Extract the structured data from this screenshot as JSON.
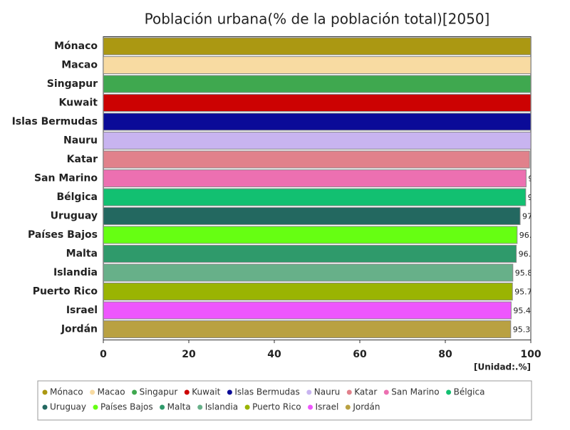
{
  "chart_data": {
    "type": "bar",
    "orientation": "horizontal",
    "title": "Población urbana(% de la población total)[2050]",
    "unit_label": "[Unidad:.%]",
    "categories": [
      "Mónaco",
      "Macao",
      "Singapur",
      "Kuwait",
      "Islas Bermudas",
      "Nauru",
      "Katar",
      "San Marino",
      "Bélgica",
      "Uruguay",
      "Países Bajos",
      "Malta",
      "Islandia",
      "Puerto Rico",
      "Israel",
      "Jordán"
    ],
    "values": [
      100,
      100,
      100,
      100,
      100,
      100,
      99.7,
      98.9,
      98.8,
      97.5,
      96.8,
      96.6,
      95.8,
      95.7,
      95.4,
      95.3
    ],
    "colors": [
      "#ab9812",
      "#f8dba2",
      "#3fa84f",
      "#cc0202",
      "#0b0b98",
      "#c8b4f0",
      "#e1818b",
      "#ec70b1",
      "#12c071",
      "#236860",
      "#66ff12",
      "#2f9a6b",
      "#67b089",
      "#9ab402",
      "#ee56fd",
      "#b9a142"
    ],
    "xlim": [
      0,
      100
    ],
    "xticks": [
      0,
      20,
      40,
      60,
      80,
      100
    ],
    "legend": "bottom"
  }
}
